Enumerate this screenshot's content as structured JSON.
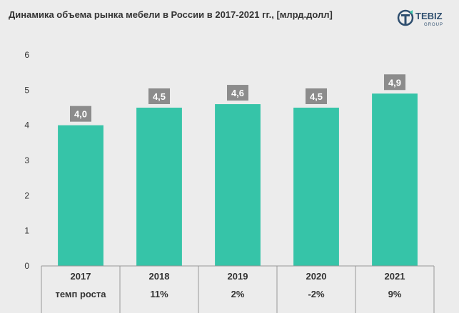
{
  "title": "Динамика объема рынка мебели в России в 2017-2021 гг., [млрд.долл]",
  "brand": {
    "name": "TEBIZ",
    "sub": "GROUP",
    "icon": "tebiz-logo-icon"
  },
  "colors": {
    "bar": "#36c4a8",
    "label_bg": "#8c8c8c",
    "background": "#ececec",
    "axis": "#999999"
  },
  "chart_data": {
    "type": "bar",
    "categories": [
      "2017",
      "2018",
      "2019",
      "2020",
      "2021"
    ],
    "values": [
      4.0,
      4.5,
      4.6,
      4.5,
      4.9
    ],
    "data_labels": [
      "4,0",
      "4,5",
      "4,6",
      "4,5",
      "4,9"
    ],
    "title": "Динамика объема рынка мебели в России в 2017-2021 гг., [млрд.долл]",
    "xlabel": "",
    "ylabel": "",
    "ylim": [
      0,
      6
    ],
    "yticks": [
      "0",
      "1",
      "2",
      "3",
      "4",
      "5",
      "6"
    ],
    "grid": false,
    "table_row": {
      "label": "темп роста",
      "values": [
        "",
        "11%",
        "2%",
        "-2%",
        "9%"
      ]
    }
  }
}
